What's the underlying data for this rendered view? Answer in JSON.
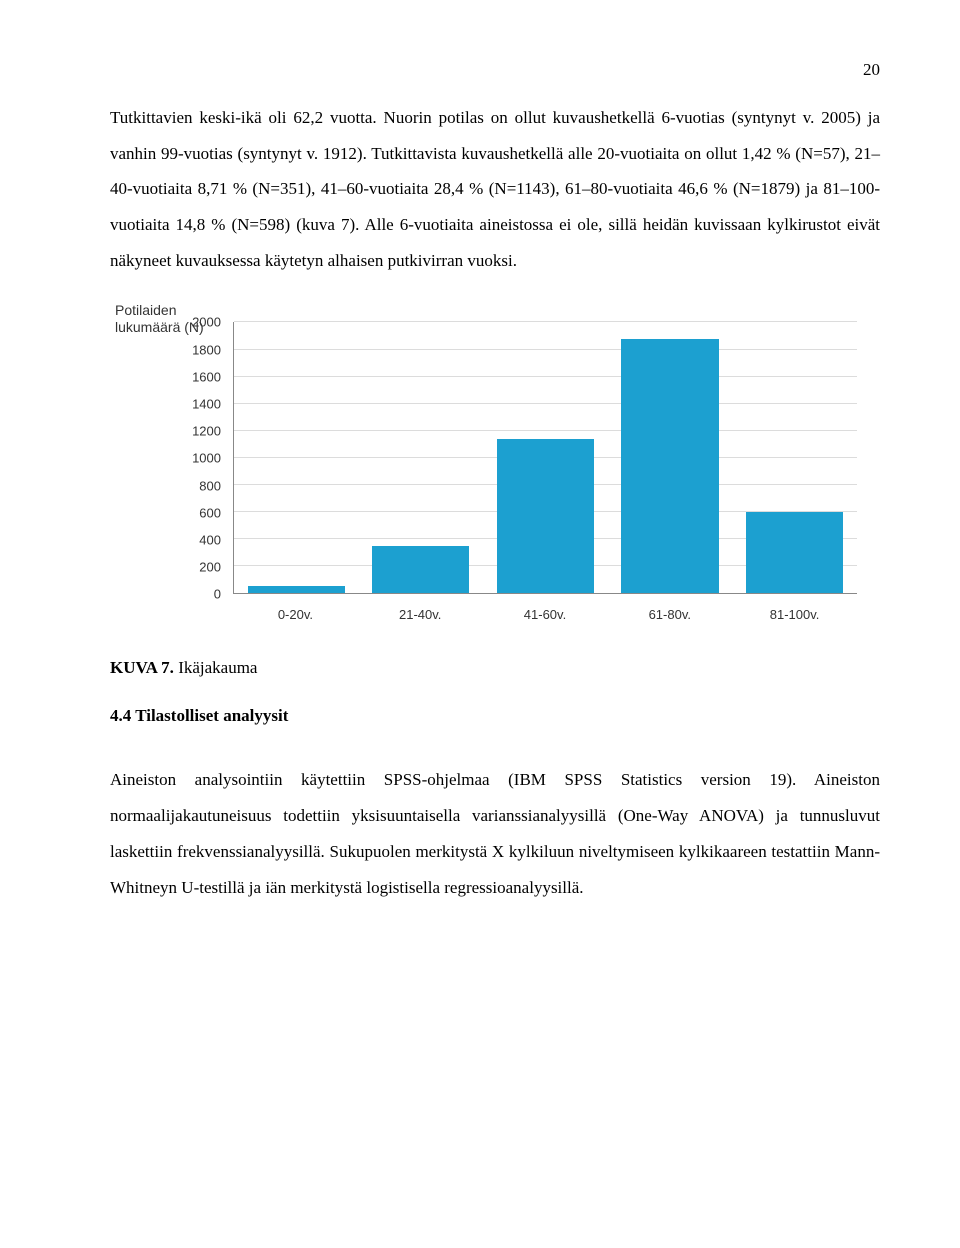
{
  "page_number": "20",
  "para1": "Tutkittavien keski-ikä oli 62,2 vuotta. Nuorin potilas on ollut kuvaushetkellä 6-vuotias (syntynyt v. 2005) ja vanhin 99-vuotias (syntynyt v. 1912). Tutkittavista kuvaushetkellä alle 20-vuotiaita on ollut 1,42 % (N=57), 21–40-vuotiaita 8,71 % (N=351), 41–60-vuotiaita 28,4 % (N=1143), 61–80-vuotiaita 46,6 % (N=1879) ja 81–100-vuotiaita 14,8 % (N=598) (kuva 7). Alle 6-vuotiaita aineistossa ei ole, sillä heidän kuvissaan kylkirustot eivät näkyneet kuvauksessa käytetyn alhaisen putkivirran vuoksi.",
  "chart": {
    "y_label_line1": "Potilaiden",
    "y_label_line2": "lukumäärä (N)",
    "y_min": 0,
    "y_max": 2000,
    "y_step": 200,
    "y_ticks": [
      "0",
      "200",
      "400",
      "600",
      "800",
      "1000",
      "1200",
      "1400",
      "1600",
      "1800",
      "2000"
    ],
    "categories": [
      "0-20v.",
      "21-40v.",
      "41-60v.",
      "61-80v.",
      "81-100v."
    ],
    "values": [
      57,
      351,
      1143,
      1879,
      598
    ],
    "bar_color": "#1ca0d0",
    "grid_color": "#dcdcdc",
    "axis_color": "#888888",
    "tick_font_color": "#333333"
  },
  "caption_bold": "KUVA 7.",
  "caption_rest": " Ikäjakauma",
  "heading": "4.4 Tilastolliset analyysit",
  "para2": "Aineiston analysointiin käytettiin SPSS-ohjelmaa (IBM SPSS Statistics version 19). Aineiston normaalijakautuneisuus todettiin yksisuuntaisella varianssianalyysillä (One-Way ANOVA) ja tunnusluvut laskettiin frekvenssianalyysillä. Sukupuolen merkitystä X kylkiluun niveltymiseen kylkikaareen testattiin Mann-Whitneyn U-testillä ja iän merkitystä logistisella regressioanalyysillä."
}
